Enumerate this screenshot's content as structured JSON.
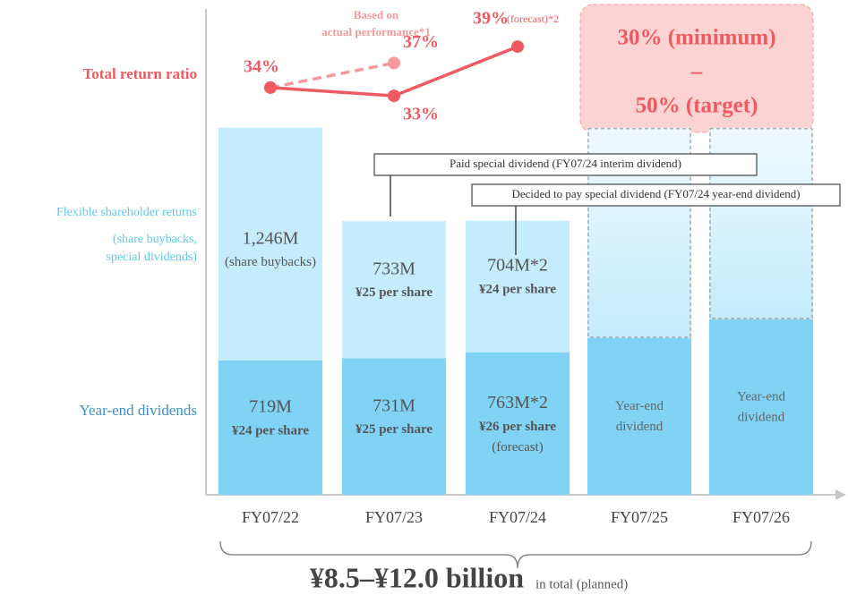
{
  "chart_data": {
    "type": "bar",
    "stacked": true,
    "categories": [
      "FY07/22",
      "FY07/23",
      "FY07/24",
      "FY07/25",
      "FY07/26"
    ],
    "planned": [
      false,
      false,
      false,
      true,
      true
    ],
    "ylim": [
      0,
      2600
    ],
    "series": [
      {
        "name": "Year-end dividends",
        "color": "#80d3f5",
        "values": [
          719,
          731,
          763,
          838,
          939
        ],
        "value_labels": [
          "719M",
          "731M",
          "763M*2",
          null,
          null
        ],
        "notes": [
          [
            "¥24 per share"
          ],
          [
            "¥25 per share"
          ],
          [
            "¥26 per share",
            "(forecast)"
          ],
          [
            "Year-end",
            "dividend"
          ],
          [
            "Year-end",
            "dividend"
          ]
        ]
      },
      {
        "name": "Flexible shareholder returns",
        "name_sub": [
          "(share buybacks,",
          "special dividends)"
        ],
        "color": "#c4ecfc",
        "values": [
          1246,
          733,
          704,
          1126,
          1025
        ],
        "value_labels": [
          "1,246M",
          "733M",
          "704M*2",
          null,
          null
        ],
        "notes": [
          [
            "(share buybacks)"
          ],
          [
            "¥25 per share"
          ],
          [
            "¥24 per share"
          ],
          [],
          []
        ]
      }
    ],
    "lines": [
      {
        "name": "Total return ratio",
        "color": "#ef5a60",
        "dashed": false,
        "values": [
          34,
          33,
          39,
          null,
          null
        ],
        "value_labels": [
          "34%",
          "33%",
          "39%",
          null,
          null
        ],
        "forecast_note": "(forecast)*2"
      },
      {
        "name_lines": [
          "Based on",
          "actual performance*1"
        ],
        "color": "#f59a9c",
        "dashed": true,
        "values": [
          34,
          37,
          null,
          null,
          null
        ],
        "value_labels": [
          null,
          "37%",
          null,
          null,
          null
        ]
      }
    ],
    "y2lim": [
      30.5,
      42.5
    ],
    "target": [
      "30% (minimum)",
      "–",
      "50% (target)"
    ],
    "callouts": [
      "Paid special dividend (FY07/24 interim dividend)",
      "Decided to pay special dividend (FY07/24 year-end dividend)"
    ],
    "total": {
      "amount": "¥8.5–¥12.0 billion",
      "note": "in total (planned)"
    }
  }
}
